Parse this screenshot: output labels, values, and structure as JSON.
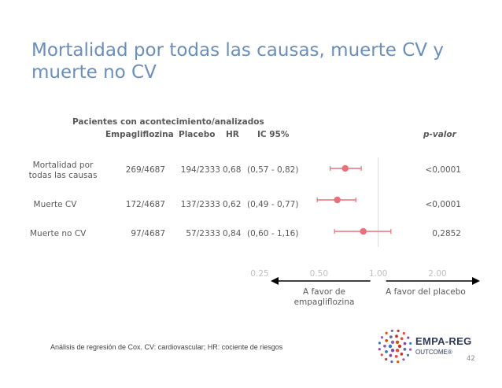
{
  "title": "Mortalidad por todas las causas, muerte CV y muerte no CV",
  "table": {
    "group_header": "Pacientes con acontecimiento/analizados",
    "columns": [
      "Empagliflozina",
      "Placebo",
      "HR",
      "IC 95%",
      "p-valor"
    ],
    "rows": [
      {
        "label": "Mortalidad por\ntodas las causas",
        "empa": "269/4687",
        "placebo": "194/2333",
        "hr": "0,68",
        "ci": "(0,57 - 0,82)",
        "p": "<0,0001"
      },
      {
        "label": "Muerte CV",
        "empa": "172/4687",
        "placebo": "137/2333",
        "hr": "0,62",
        "ci": "(0,49 - 0,77)",
        "p": "<0,0001"
      },
      {
        "label": "Muerte no CV",
        "empa": "97/4687",
        "placebo": "57/2333",
        "hr": "0,84",
        "ci": "(0,60 - 1,16)",
        "p": "0,2852"
      }
    ]
  },
  "chart_data": {
    "type": "scatter",
    "subtype": "forest",
    "x_scale": "log",
    "xlim": [
      0.25,
      2.0
    ],
    "reference_line": 1.0,
    "x_ticks": [
      0.25,
      0.5,
      1.0,
      2.0
    ],
    "x_tick_labels": [
      "0.25",
      "0.50",
      "1.00",
      "2.00"
    ],
    "categories": [
      "Mortalidad por todas las causas",
      "Muerte CV",
      "Muerte no CV"
    ],
    "points": [
      {
        "hr": 0.68,
        "ci_low": 0.57,
        "ci_high": 0.82
      },
      {
        "hr": 0.62,
        "ci_low": 0.49,
        "ci_high": 0.77
      },
      {
        "hr": 0.84,
        "ci_low": 0.6,
        "ci_high": 1.16
      }
    ],
    "marker_color": "#e8707a",
    "axis_color": "#d9d9d9",
    "favor_left": "A favor de\nempagliflozina",
    "favor_right": "A favor del placebo"
  },
  "footnote": "Análisis de regresión de Cox. CV: cardiovascular; HR: cociente de riesgos",
  "page_number": "42",
  "logo": {
    "line1": "EMPA-REG",
    "line2": "OUTCOME®"
  }
}
